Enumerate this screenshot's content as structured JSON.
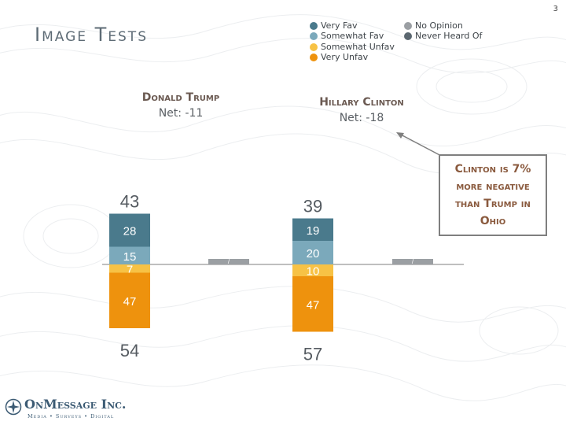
{
  "page_number": "3",
  "title": "Image Tests",
  "legend": [
    {
      "label": "Very Fav",
      "color": "#4a7a8c"
    },
    {
      "label": "Somewhat Fav",
      "color": "#7ba9bb"
    },
    {
      "label": "Somewhat Unfav",
      "color": "#f7c245"
    },
    {
      "label": "Very Unfav",
      "color": "#ee920d"
    },
    {
      "label": "No Opinion",
      "color": "#9b9fa3"
    },
    {
      "label": "Never Heard Of",
      "color": "#5b6770"
    }
  ],
  "candidates": [
    {
      "name": "Donald Trump",
      "net": "Net: -11"
    },
    {
      "name": "Hillary Clinton",
      "net": "Net: -18"
    }
  ],
  "callout": {
    "lines": [
      "Clinton is 7%",
      "more negative",
      "than Trump in",
      "Ohio"
    ]
  },
  "chart_data": {
    "type": "bar",
    "stacked": "diverging",
    "categories": [
      "Donald Trump",
      "Hillary Clinton"
    ],
    "series": [
      {
        "name": "Very Fav",
        "values": [
          28,
          19
        ],
        "color": "#4a7a8c"
      },
      {
        "name": "Somewhat Fav",
        "values": [
          15,
          20
        ],
        "color": "#7ba9bb"
      },
      {
        "name": "Somewhat Unfav",
        "values": [
          7,
          10
        ],
        "color": "#f7c245"
      },
      {
        "name": "Very Unfav",
        "values": [
          47,
          47
        ],
        "color": "#ee920d"
      },
      {
        "name": "No Opinion",
        "values": [
          null,
          null
        ],
        "color": "#9b9fa3"
      },
      {
        "name": "Never Heard Of",
        "values": [
          null,
          null
        ],
        "color": "#5b6770"
      }
    ],
    "totals_favorable": [
      43,
      39
    ],
    "totals_unfavorable": [
      54,
      57
    ],
    "neutral_labels": [
      "/",
      "/"
    ]
  },
  "logo": {
    "name": "OnMessage Inc.",
    "tagline": "Media • Surveys • Digital"
  }
}
